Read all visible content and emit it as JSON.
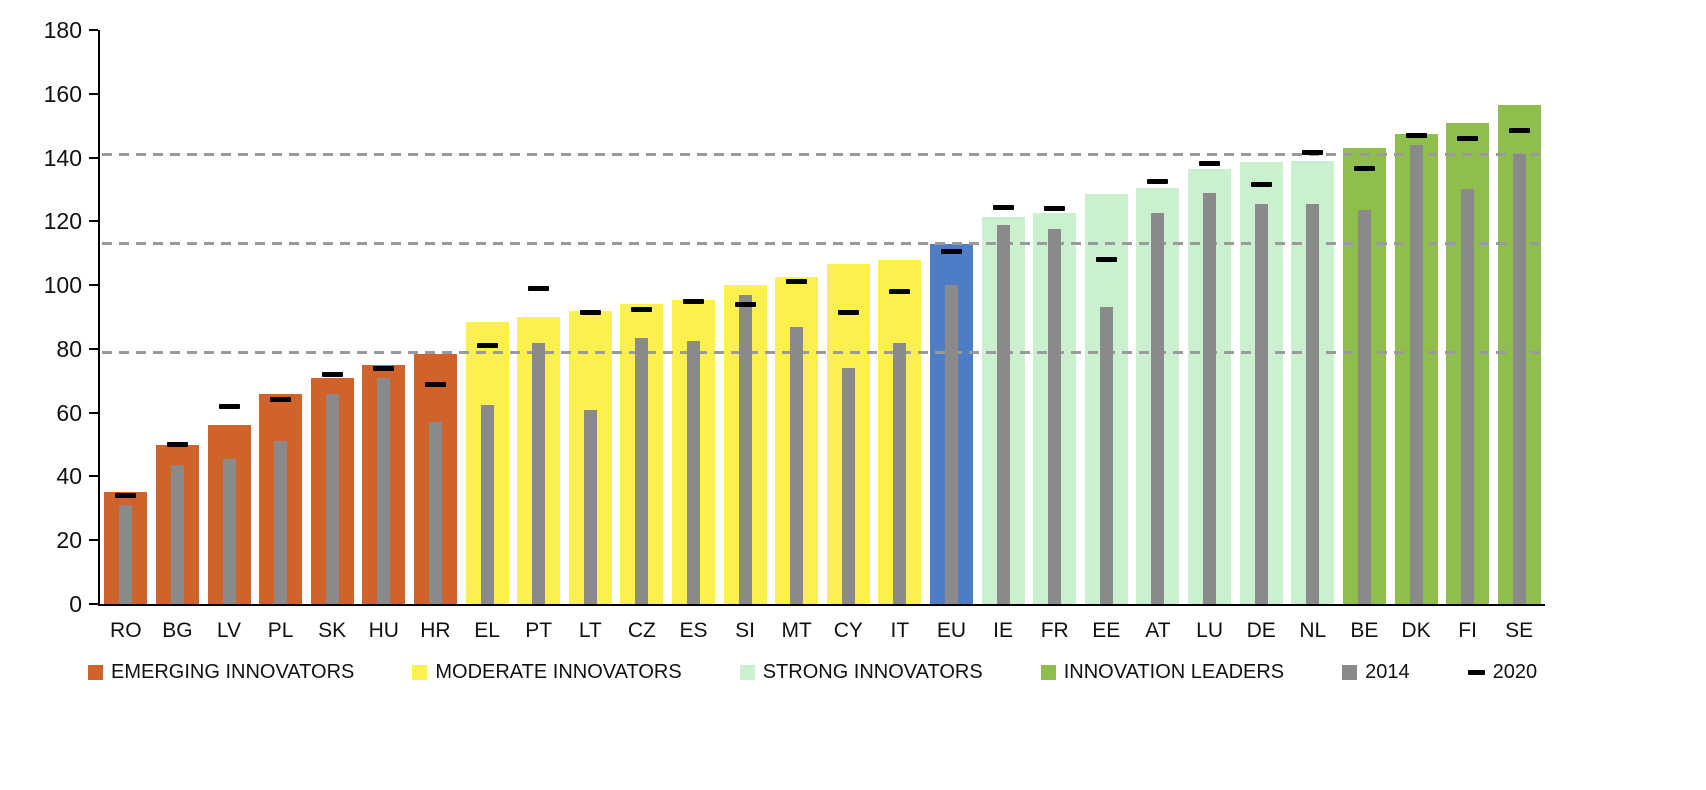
{
  "chart_data": {
    "type": "bar",
    "title": "",
    "xlabel": "",
    "ylabel": "",
    "ylim": [
      0,
      180
    ],
    "ytick_step": 20,
    "yticks": [
      0,
      20,
      40,
      60,
      80,
      100,
      120,
      140,
      160,
      180
    ],
    "threshold_lines": [
      79,
      113,
      141
    ],
    "grid": "dashed-thresholds-only",
    "legend_position": "bottom",
    "categories": [
      "RO",
      "BG",
      "LV",
      "PL",
      "SK",
      "HU",
      "HR",
      "EL",
      "PT",
      "LT",
      "CZ",
      "ES",
      "SI",
      "MT",
      "CY",
      "IT",
      "EU",
      "IE",
      "FR",
      "EE",
      "AT",
      "LU",
      "DE",
      "NL",
      "BE",
      "DK",
      "FI",
      "SE"
    ],
    "groups": [
      "emerging",
      "emerging",
      "emerging",
      "emerging",
      "emerging",
      "emerging",
      "emerging",
      "moderate",
      "moderate",
      "moderate",
      "moderate",
      "moderate",
      "moderate",
      "moderate",
      "moderate",
      "moderate",
      "eu",
      "strong",
      "strong",
      "strong",
      "strong",
      "strong",
      "strong",
      "strong",
      "leaders",
      "leaders",
      "leaders",
      "leaders"
    ],
    "series": [
      {
        "name": "current",
        "style": "wide-colored-bar",
        "values": [
          35,
          50,
          56,
          66,
          71,
          75,
          78.5,
          88.5,
          90,
          92,
          94,
          95.5,
          100,
          102.5,
          106.5,
          108,
          113,
          121.5,
          122.5,
          128.5,
          130.5,
          136.5,
          138.5,
          139,
          143,
          147.5,
          151,
          156.5
        ]
      },
      {
        "name": "2014",
        "style": "narrow-gray-bar",
        "values": [
          31,
          43.5,
          45.5,
          51,
          66,
          71,
          57,
          62.5,
          82,
          61,
          83.5,
          82.5,
          97,
          87,
          74,
          82,
          100,
          119,
          117.5,
          93,
          122.5,
          129,
          125.5,
          125.5,
          123.5,
          144,
          130,
          141
        ]
      },
      {
        "name": "2020",
        "style": "black-dash-marker",
        "values": [
          34,
          50,
          62,
          64,
          72,
          74,
          69,
          81,
          99,
          91.5,
          92.5,
          95,
          94,
          101,
          91.5,
          98,
          110.5,
          124.5,
          124,
          108,
          132.5,
          138,
          131.5,
          141.5,
          136.5,
          147,
          146,
          148.5
        ]
      }
    ],
    "legend": [
      {
        "label": "EMERGING INNOVATORS",
        "swatch": "emerging"
      },
      {
        "label": "MODERATE INNOVATORS",
        "swatch": "moderate"
      },
      {
        "label": "STRONG INNOVATORS",
        "swatch": "strong"
      },
      {
        "label": "INNOVATION LEADERS",
        "swatch": "leaders"
      },
      {
        "label": "2014",
        "swatch": "gray2014"
      },
      {
        "label": "2020",
        "swatch": "dash2020"
      }
    ]
  },
  "colors": {
    "emerging": "#D0632B",
    "moderate": "#FBF04D",
    "strong": "#CBF0CF",
    "leaders": "#8FBE4D",
    "eu": "#4F7DC5",
    "gray2014": "#8A8A8A",
    "dash2020": "#000000",
    "threshold": "#9A9A9A",
    "axis": "#000000"
  }
}
